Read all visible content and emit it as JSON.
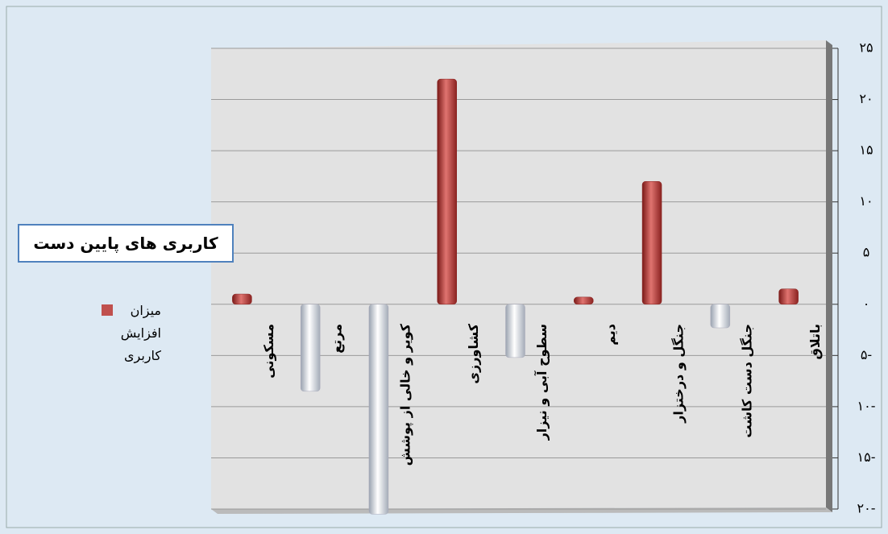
{
  "chart_data": {
    "type": "bar",
    "title": "کاربری های پایین دست",
    "categories": [
      "مسکونی",
      "مرتع",
      "کویر و خالی از پوشش",
      "کشاورزی",
      "سطوح آبی و نیزار",
      "دیم",
      "جنگل و درختزار",
      "جنگل دست کاشت",
      "باتلاق"
    ],
    "series": [
      {
        "name": "میزان افزایش کاربری",
        "color": "#c0504d",
        "negative_color": "#dfe3ea",
        "values": [
          1,
          -8.5,
          -20.5,
          22,
          -5.2,
          0.7,
          12,
          -2.3,
          1.5
        ]
      }
    ],
    "ylim": [
      -20,
      25
    ],
    "yticks": [
      {
        "value": 25,
        "label": "۲۵"
      },
      {
        "value": 20,
        "label": "۲۰"
      },
      {
        "value": 15,
        "label": "۱۵"
      },
      {
        "value": 10,
        "label": "۱۰"
      },
      {
        "value": 5,
        "label": "۵"
      },
      {
        "value": 0,
        "label": "۰"
      },
      {
        "value": -5,
        "label": "۵-"
      },
      {
        "value": -10,
        "label": "۱۰-"
      },
      {
        "value": -15,
        "label": "۱۵-"
      },
      {
        "value": -20,
        "label": "۲۰-"
      }
    ],
    "grid": true
  }
}
